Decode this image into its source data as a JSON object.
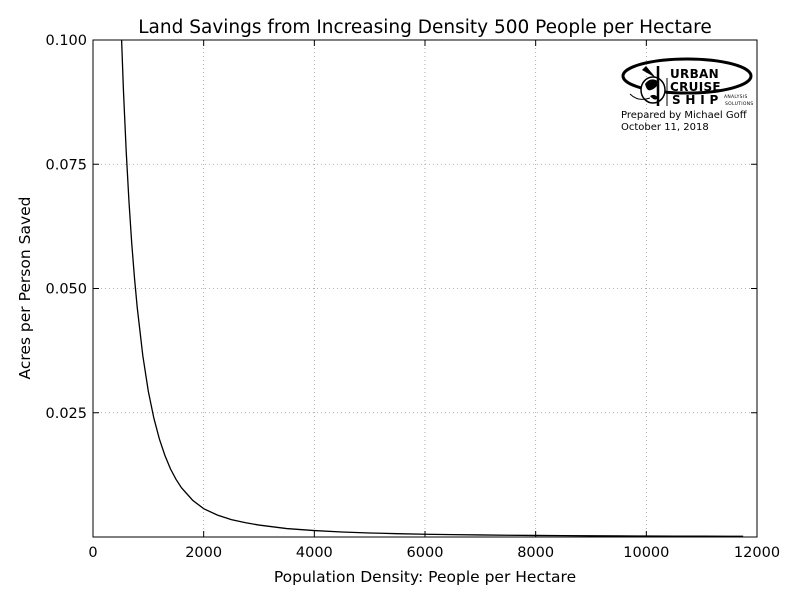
{
  "chart_data": {
    "type": "line",
    "title": "Land Savings from Increasing Density 500 People per Hectare",
    "xlabel": "Population Density: People per Hectare",
    "ylabel": "Acres per Person Saved",
    "xlim": [
      0,
      12000
    ],
    "ylim": [
      0,
      0.1
    ],
    "x_ticks": [
      0,
      2000,
      4000,
      6000,
      8000,
      10000,
      12000
    ],
    "x_tick_labels": [
      "0",
      "2000",
      "4000",
      "6000",
      "8000",
      "10000",
      "12000"
    ],
    "y_ticks": [
      0.025,
      0.05,
      0.075,
      0.1
    ],
    "y_tick_labels": [
      "0.025",
      "0.050",
      "0.075",
      "0.100"
    ],
    "grid": true,
    "series": [
      {
        "color": "#000000",
        "x": [
          500,
          550,
          600,
          650,
          700,
          750,
          800,
          900,
          1000,
          1100,
          1200,
          1300,
          1400,
          1500,
          1600,
          1800,
          2000,
          2250,
          2500,
          2750,
          3000,
          3500,
          4000,
          4500,
          5000,
          5500,
          6000,
          6500,
          7000,
          7500,
          8000,
          8500,
          9000,
          9500,
          10000,
          10500,
          11000,
          11500,
          11750
        ],
        "y": [
          0.1052,
          0.0899,
          0.0776,
          0.0675,
          0.0591,
          0.0521,
          0.0461,
          0.0365,
          0.0293,
          0.0239,
          0.0197,
          0.0164,
          0.0137,
          0.0116,
          0.0099,
          0.0074,
          0.0057,
          0.0044,
          0.0035,
          0.0029,
          0.0024,
          0.0017,
          0.0013,
          0.001,
          0.00081,
          0.00067,
          0.00056,
          0.00047,
          0.00041,
          0.00035,
          0.00031,
          0.00027,
          0.00024,
          0.00022,
          0.00019,
          0.00018,
          0.00016,
          0.00015,
          0.00014
        ]
      }
    ]
  },
  "logo": {
    "line1": "URBAN",
    "line2": "CRUISE",
    "line3": "S H I P",
    "tag1": "ANALYSIS",
    "tag2": "SOLUTIONS"
  },
  "credit": {
    "prepared_by": "Prepared by Michael Goff",
    "date": "October 11, 2018"
  }
}
